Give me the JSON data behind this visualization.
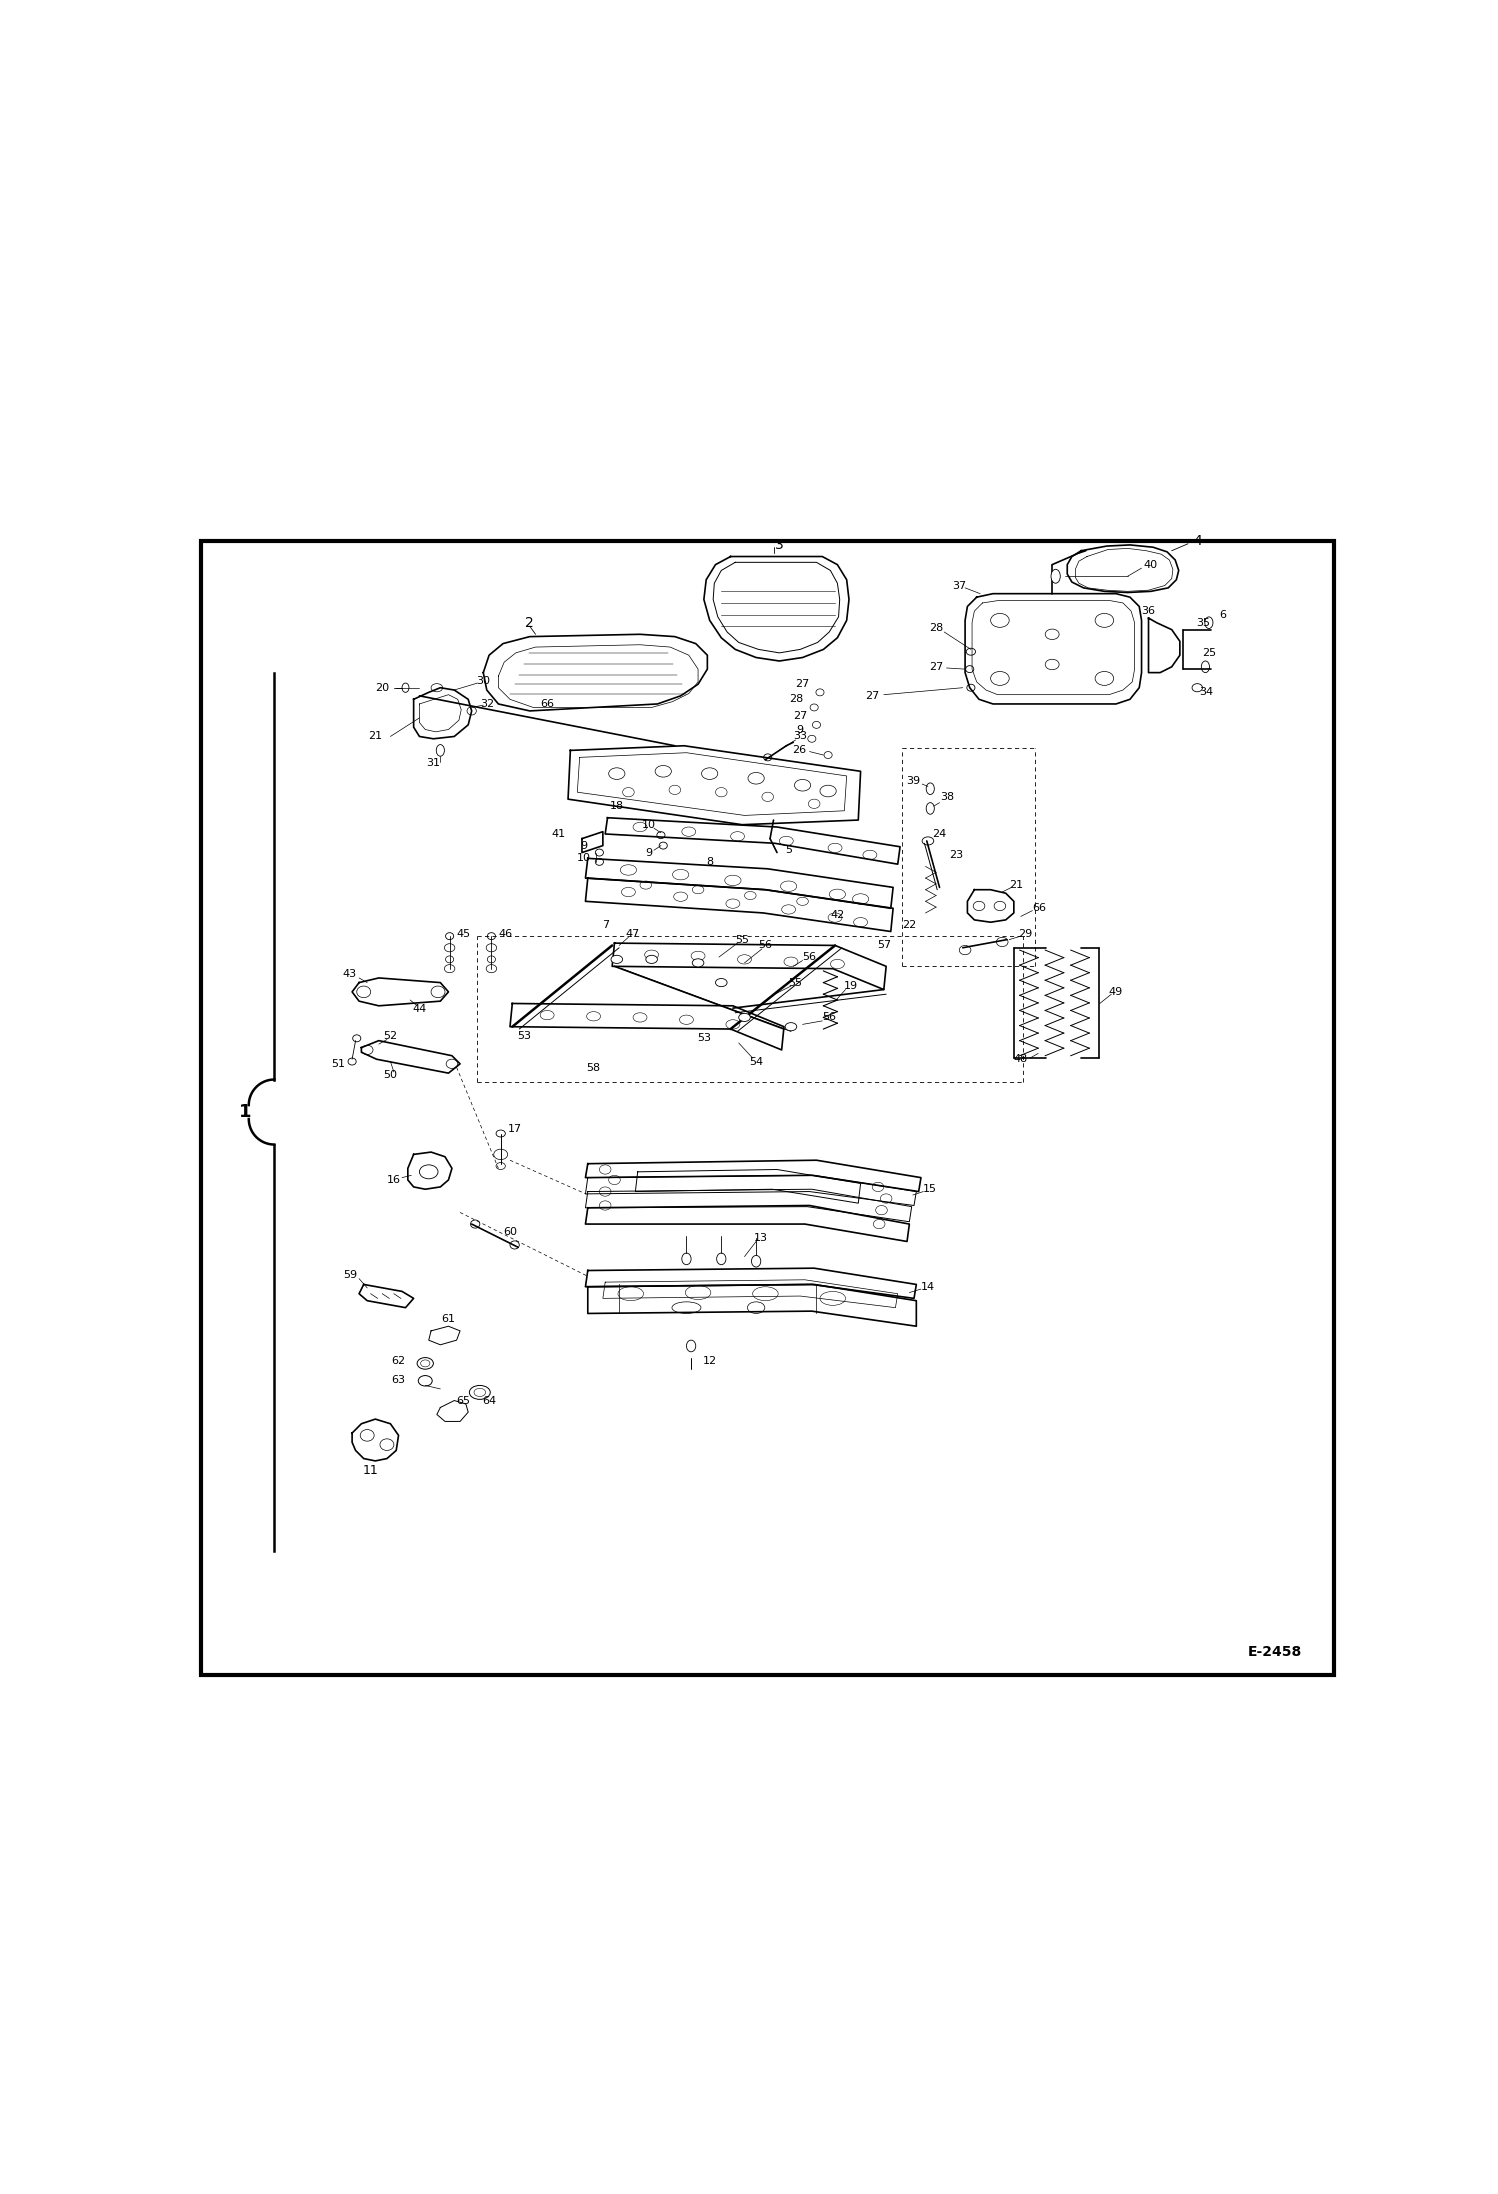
{
  "figure_width": 14.98,
  "figure_height": 21.94,
  "dpi": 100,
  "bg_color": "#ffffff",
  "lc": "#000000",
  "diagram_code": "E-2458",
  "lw_border": 3.0,
  "lw_thick": 1.8,
  "lw_med": 1.2,
  "lw_thin": 0.7,
  "lw_dash": 0.6,
  "fs_label": 9,
  "fs_large": 13
}
